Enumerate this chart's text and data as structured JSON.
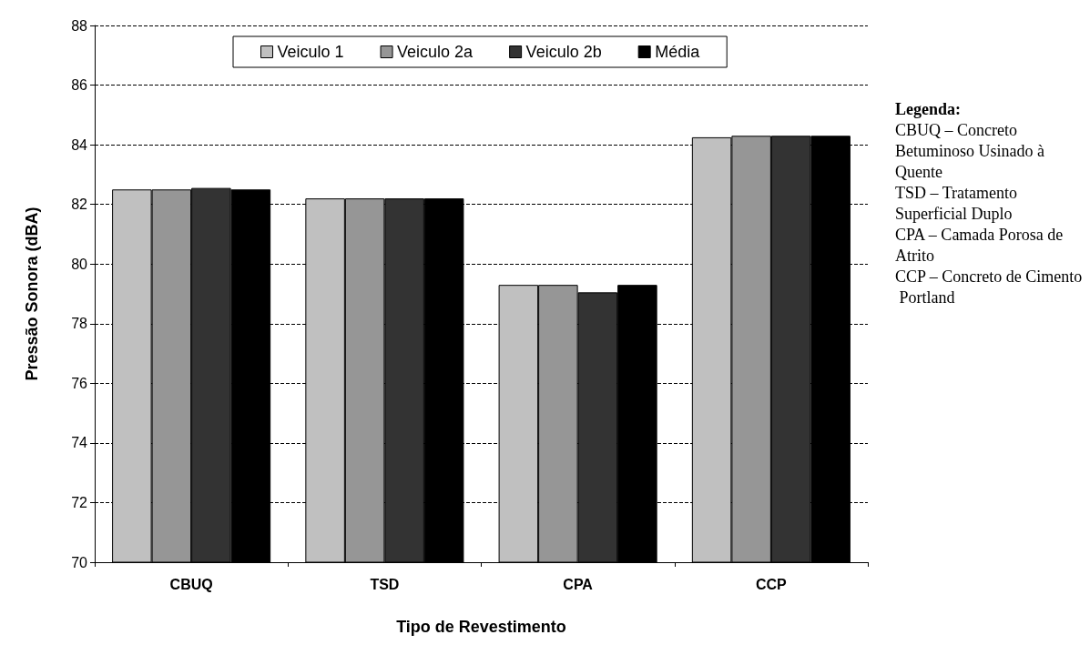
{
  "chart_data": {
    "type": "bar",
    "xlabel": "Tipo de Revestimento",
    "ylabel": "Pressão Sonora (dBA)",
    "categories": [
      "CBUQ",
      "TSD",
      "CPA",
      "CCP"
    ],
    "series": [
      {
        "name": "Veiculo 1",
        "color": "#c0c0c0",
        "values": [
          82.5,
          82.2,
          79.3,
          84.25
        ]
      },
      {
        "name": "Veiculo 2a",
        "color": "#969696",
        "values": [
          82.5,
          82.2,
          79.3,
          84.3
        ]
      },
      {
        "name": "Veiculo 2b",
        "color": "#333333",
        "values": [
          82.55,
          82.2,
          79.05,
          84.3
        ]
      },
      {
        "name": "Média",
        "color": "#000000",
        "values": [
          82.5,
          82.2,
          79.3,
          84.3
        ]
      }
    ],
    "ylim": [
      70,
      88
    ],
    "yticks": [
      70,
      72,
      74,
      76,
      78,
      80,
      82,
      84,
      86,
      88
    ],
    "grid": "y",
    "legend": "top",
    "annotations": [
      "Legenda:",
      "CBUQ – Concreto Betuminoso Usinado à Quente",
      "TSD – Tratamento Superficial Duplo",
      "CPA – Camada Porosa de Atrito",
      "CCP – Concreto de Cimento Portland"
    ]
  }
}
